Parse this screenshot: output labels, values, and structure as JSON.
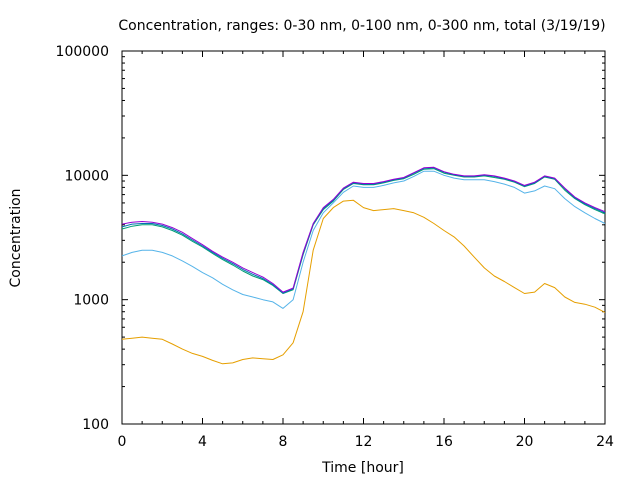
{
  "chart_data": {
    "type": "line",
    "title": "Concentration, ranges: 0-30 nm, 0-100 nm, 0-300 nm, total (3/19/19)",
    "xlabel": "Time [hour]",
    "ylabel": "Concentration",
    "xlim": [
      0,
      24
    ],
    "ylim": [
      100,
      100000
    ],
    "yscale": "log",
    "grid": false,
    "legend": "none",
    "x_ticks": [
      0,
      4,
      8,
      12,
      16,
      20,
      24
    ],
    "x_tick_labels": [
      "0",
      "4",
      "8",
      "12",
      "16",
      "20",
      "24"
    ],
    "y_ticks": [
      100,
      1000,
      10000,
      100000
    ],
    "y_tick_labels": [
      "100",
      "1000",
      "10000",
      "100000"
    ],
    "series": [
      {
        "color": "#e69f00",
        "points": [
          [
            0,
            480
          ],
          [
            0.5,
            490
          ],
          [
            1,
            500
          ],
          [
            1.5,
            490
          ],
          [
            2,
            480
          ],
          [
            2.5,
            440
          ],
          [
            3,
            400
          ],
          [
            3.5,
            370
          ],
          [
            4,
            350
          ],
          [
            4.5,
            325
          ],
          [
            5,
            305
          ],
          [
            5.5,
            310
          ],
          [
            6,
            330
          ],
          [
            6.5,
            340
          ],
          [
            7,
            335
          ],
          [
            7.5,
            330
          ],
          [
            8,
            360
          ],
          [
            8.5,
            450
          ],
          [
            9,
            800
          ],
          [
            9.5,
            2500
          ],
          [
            10,
            4500
          ],
          [
            10.5,
            5500
          ],
          [
            11,
            6200
          ],
          [
            11.5,
            6300
          ],
          [
            12,
            5500
          ],
          [
            12.5,
            5200
          ],
          [
            13,
            5300
          ],
          [
            13.5,
            5400
          ],
          [
            14,
            5200
          ],
          [
            14.5,
            5000
          ],
          [
            15,
            4600
          ],
          [
            15.5,
            4100
          ],
          [
            16,
            3600
          ],
          [
            16.5,
            3200
          ],
          [
            17,
            2700
          ],
          [
            17.5,
            2200
          ],
          [
            18,
            1800
          ],
          [
            18.5,
            1550
          ],
          [
            19,
            1400
          ],
          [
            19.5,
            1250
          ],
          [
            20,
            1120
          ],
          [
            20.5,
            1150
          ],
          [
            21,
            1350
          ],
          [
            21.5,
            1250
          ],
          [
            22,
            1050
          ],
          [
            22.5,
            950
          ],
          [
            23,
            920
          ],
          [
            23.5,
            870
          ],
          [
            24,
            790
          ]
        ]
      },
      {
        "color": "#56b4e9",
        "points": [
          [
            0,
            2250
          ],
          [
            0.5,
            2400
          ],
          [
            1,
            2500
          ],
          [
            1.5,
            2500
          ],
          [
            2,
            2400
          ],
          [
            2.5,
            2250
          ],
          [
            3,
            2050
          ],
          [
            3.5,
            1850
          ],
          [
            4,
            1650
          ],
          [
            4.5,
            1500
          ],
          [
            5,
            1330
          ],
          [
            5.5,
            1200
          ],
          [
            6,
            1100
          ],
          [
            6.5,
            1050
          ],
          [
            7,
            1000
          ],
          [
            7.5,
            960
          ],
          [
            8,
            850
          ],
          [
            8.5,
            1000
          ],
          [
            9,
            2000
          ],
          [
            9.5,
            3600
          ],
          [
            10,
            5000
          ],
          [
            10.5,
            6000
          ],
          [
            11,
            7300
          ],
          [
            11.5,
            8200
          ],
          [
            12,
            8000
          ],
          [
            12.5,
            8000
          ],
          [
            13,
            8300
          ],
          [
            13.5,
            8700
          ],
          [
            14,
            9000
          ],
          [
            14.5,
            9800
          ],
          [
            15,
            10800
          ],
          [
            15.5,
            10800
          ],
          [
            16,
            10000
          ],
          [
            16.5,
            9500
          ],
          [
            17,
            9200
          ],
          [
            17.5,
            9200
          ],
          [
            18,
            9200
          ],
          [
            18.5,
            8900
          ],
          [
            19,
            8500
          ],
          [
            19.5,
            8000
          ],
          [
            20,
            7200
          ],
          [
            20.5,
            7500
          ],
          [
            21,
            8200
          ],
          [
            21.5,
            7800
          ],
          [
            22,
            6500
          ],
          [
            22.5,
            5600
          ],
          [
            23,
            5000
          ],
          [
            23.5,
            4500
          ],
          [
            24,
            4100
          ]
        ]
      },
      {
        "color": "#009e73",
        "points": [
          [
            0,
            3700
          ],
          [
            0.5,
            3900
          ],
          [
            1,
            4000
          ],
          [
            1.5,
            4000
          ],
          [
            2,
            3850
          ],
          [
            2.5,
            3600
          ],
          [
            3,
            3300
          ],
          [
            3.5,
            2950
          ],
          [
            4,
            2650
          ],
          [
            4.5,
            2350
          ],
          [
            5,
            2100
          ],
          [
            5.5,
            1900
          ],
          [
            6,
            1700
          ],
          [
            6.5,
            1550
          ],
          [
            7,
            1450
          ],
          [
            7.5,
            1300
          ],
          [
            8,
            1120
          ],
          [
            8.5,
            1200
          ],
          [
            9,
            2300
          ],
          [
            9.5,
            4000
          ],
          [
            10,
            5300
          ],
          [
            10.5,
            6200
          ],
          [
            11,
            7700
          ],
          [
            11.5,
            8600
          ],
          [
            12,
            8400
          ],
          [
            12.5,
            8400
          ],
          [
            13,
            8700
          ],
          [
            13.5,
            9100
          ],
          [
            14,
            9400
          ],
          [
            14.5,
            10200
          ],
          [
            15,
            11200
          ],
          [
            15.5,
            11300
          ],
          [
            16,
            10400
          ],
          [
            16.5,
            10000
          ],
          [
            17,
            9700
          ],
          [
            17.5,
            9700
          ],
          [
            18,
            9900
          ],
          [
            18.5,
            9600
          ],
          [
            19,
            9300
          ],
          [
            19.5,
            8800
          ],
          [
            20,
            8100
          ],
          [
            20.5,
            8600
          ],
          [
            21,
            9700
          ],
          [
            21.5,
            9300
          ],
          [
            22,
            7600
          ],
          [
            22.5,
            6500
          ],
          [
            23,
            5800
          ],
          [
            23.5,
            5300
          ],
          [
            24,
            4900
          ]
        ]
      },
      {
        "color": "#0072b2",
        "points": [
          [
            0,
            3850
          ],
          [
            0.5,
            4050
          ],
          [
            1,
            4100
          ],
          [
            1.5,
            4100
          ],
          [
            2,
            3950
          ],
          [
            2.5,
            3700
          ],
          [
            3,
            3380
          ],
          [
            3.5,
            3020
          ],
          [
            4,
            2700
          ],
          [
            4.5,
            2400
          ],
          [
            5,
            2150
          ],
          [
            5.5,
            1950
          ],
          [
            6,
            1750
          ],
          [
            6.5,
            1600
          ],
          [
            7,
            1480
          ],
          [
            7.5,
            1320
          ],
          [
            8,
            1130
          ],
          [
            8.5,
            1220
          ],
          [
            9,
            2350
          ],
          [
            9.5,
            4050
          ],
          [
            10,
            5400
          ],
          [
            10.5,
            6300
          ],
          [
            11,
            7800
          ],
          [
            11.5,
            8700
          ],
          [
            12,
            8500
          ],
          [
            12.5,
            8500
          ],
          [
            13,
            8800
          ],
          [
            13.5,
            9200
          ],
          [
            14,
            9500
          ],
          [
            14.5,
            10400
          ],
          [
            15,
            11400
          ],
          [
            15.5,
            11500
          ],
          [
            16,
            10600
          ],
          [
            16.5,
            10100
          ],
          [
            17,
            9800
          ],
          [
            17.5,
            9800
          ],
          [
            18,
            10000
          ],
          [
            18.5,
            9800
          ],
          [
            19,
            9400
          ],
          [
            19.5,
            8900
          ],
          [
            20,
            8200
          ],
          [
            20.5,
            8700
          ],
          [
            21,
            9800
          ],
          [
            21.5,
            9400
          ],
          [
            22,
            7800
          ],
          [
            22.5,
            6600
          ],
          [
            23,
            5900
          ],
          [
            23.5,
            5400
          ],
          [
            24,
            5000
          ]
        ]
      },
      {
        "color": "#9400d3",
        "points": [
          [
            0,
            4050
          ],
          [
            0.5,
            4200
          ],
          [
            1,
            4250
          ],
          [
            1.5,
            4200
          ],
          [
            2,
            4050
          ],
          [
            2.5,
            3800
          ],
          [
            3,
            3480
          ],
          [
            3.5,
            3100
          ],
          [
            4,
            2770
          ],
          [
            4.5,
            2450
          ],
          [
            5,
            2200
          ],
          [
            5.5,
            2000
          ],
          [
            6,
            1800
          ],
          [
            6.5,
            1650
          ],
          [
            7,
            1520
          ],
          [
            7.5,
            1350
          ],
          [
            8,
            1150
          ],
          [
            8.5,
            1240
          ],
          [
            9,
            2400
          ],
          [
            9.5,
            4100
          ],
          [
            10,
            5500
          ],
          [
            10.5,
            6400
          ],
          [
            11,
            7900
          ],
          [
            11.5,
            8800
          ],
          [
            12,
            8600
          ],
          [
            12.5,
            8600
          ],
          [
            13,
            8900
          ],
          [
            13.5,
            9300
          ],
          [
            14,
            9600
          ],
          [
            14.5,
            10500
          ],
          [
            15,
            11500
          ],
          [
            15.5,
            11600
          ],
          [
            16,
            10700
          ],
          [
            16.5,
            10200
          ],
          [
            17,
            9900
          ],
          [
            17.5,
            9900
          ],
          [
            18,
            10100
          ],
          [
            18.5,
            9900
          ],
          [
            19,
            9500
          ],
          [
            19.5,
            9000
          ],
          [
            20,
            8300
          ],
          [
            20.5,
            8800
          ],
          [
            21,
            9900
          ],
          [
            21.5,
            9500
          ],
          [
            22,
            7900
          ],
          [
            22.5,
            6700
          ],
          [
            23,
            6000
          ],
          [
            23.5,
            5500
          ],
          [
            24,
            5100
          ]
        ]
      }
    ]
  }
}
